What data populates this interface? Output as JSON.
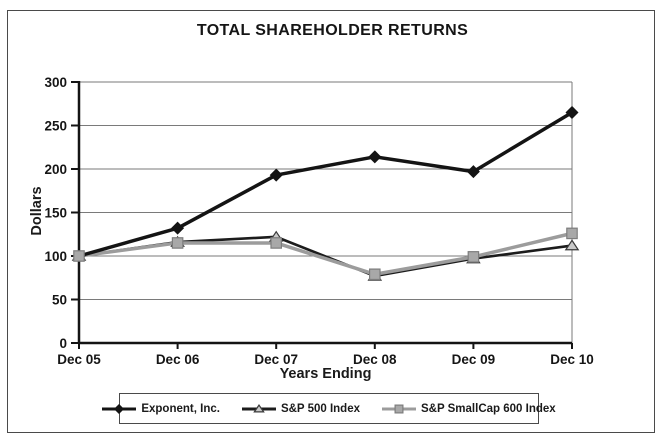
{
  "chart_data": {
    "type": "line",
    "title": "TOTAL SHAREHOLDER RETURNS",
    "xlabel": "Years Ending",
    "ylabel": "Dollars",
    "categories": [
      "Dec 05",
      "Dec 06",
      "Dec 07",
      "Dec 08",
      "Dec 09",
      "Dec 10"
    ],
    "ylim": [
      0,
      300
    ],
    "yticks": [
      0,
      50,
      100,
      150,
      200,
      250,
      300
    ],
    "grid": "horizontal",
    "legend_position": "bottom",
    "series": [
      {
        "name": "Exponent, Inc.",
        "values": [
          100,
          132,
          193,
          214,
          197,
          265
        ],
        "color": "#141414",
        "marker": "diamond",
        "marker_fill": "#141414",
        "marker_stroke": "#141414",
        "line_width": 3.5,
        "z": 3
      },
      {
        "name": "S&P 500 Index",
        "values": [
          100,
          116,
          122,
          77,
          97,
          112
        ],
        "color": "#1c1c1c",
        "marker": "triangle",
        "marker_fill": "#c9c9c9",
        "marker_stroke": "#3a3a3a",
        "line_width": 2.6,
        "z": 1
      },
      {
        "name": "S&P SmallCap 600 Index",
        "values": [
          100,
          115,
          115,
          79,
          99,
          126
        ],
        "color": "#9c9c9c",
        "marker": "square",
        "marker_fill": "#a8a8a8",
        "marker_stroke": "#7d7d7d",
        "line_width": 3.5,
        "z": 2
      }
    ]
  }
}
